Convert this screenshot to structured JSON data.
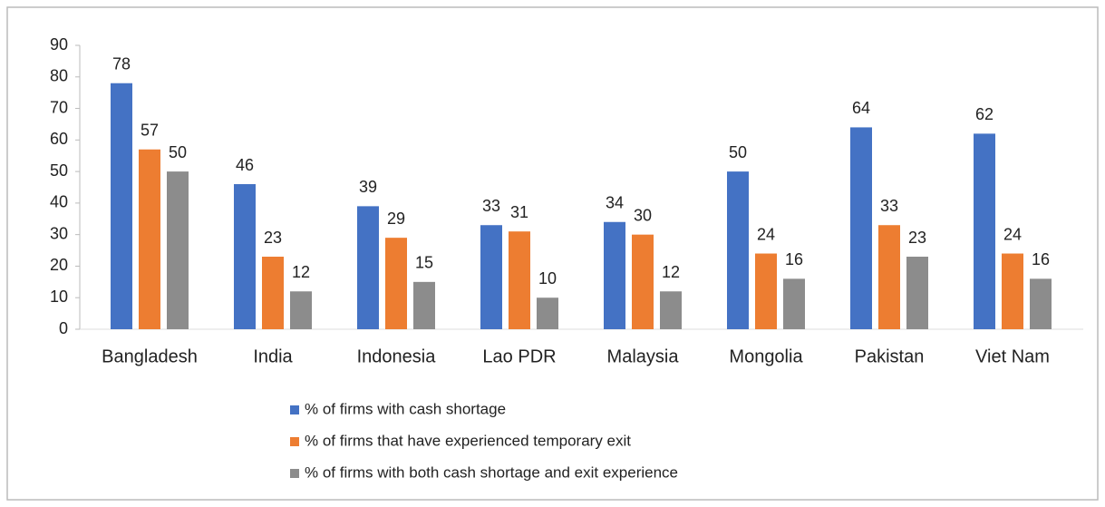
{
  "chart_data": {
    "type": "bar",
    "categories": [
      "Bangladesh",
      "India",
      "Indonesia",
      "Lao PDR",
      "Malaysia",
      "Mongolia",
      "Pakistan",
      "Viet Nam"
    ],
    "series": [
      {
        "name": "% of firms with cash shortage",
        "color": "#4472c4",
        "values": [
          78,
          46,
          39,
          33,
          34,
          50,
          64,
          62
        ]
      },
      {
        "name": "% of firms that have experienced temporary exit",
        "color": "#ed7d31",
        "values": [
          57,
          23,
          29,
          31,
          30,
          24,
          33,
          24
        ]
      },
      {
        "name": "% of firms with both cash shortage and exit experience",
        "color": "#8c8c8c",
        "values": [
          50,
          12,
          15,
          10,
          12,
          16,
          23,
          16
        ]
      }
    ],
    "ylim": [
      0,
      90
    ],
    "yticks": [
      0,
      10,
      20,
      30,
      40,
      50,
      60,
      70,
      80,
      90
    ],
    "grid": false,
    "legend": "bottom"
  }
}
